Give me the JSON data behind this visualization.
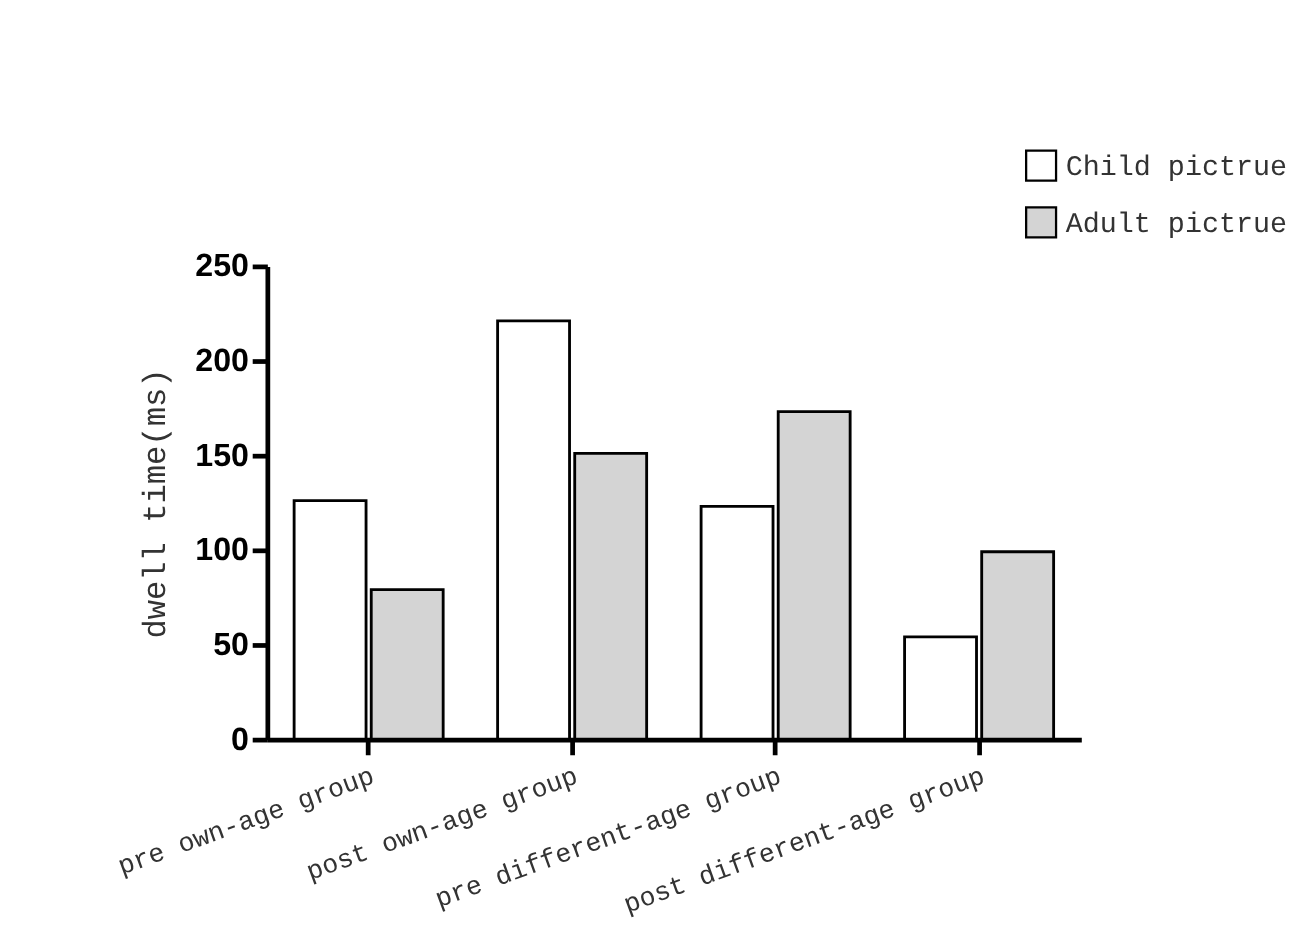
{
  "chart_data": {
    "type": "bar",
    "ylabel": "dwell time(ms)",
    "categories": [
      "pre own-age group",
      "post own-age group",
      "pre different-age group",
      "post different-age group"
    ],
    "series": [
      {
        "name": "Child pictrue",
        "color": "#ffffff",
        "values": [
          126,
          221,
          123,
          54
        ]
      },
      {
        "name": "Adult pictrue",
        "color": "#d4d4d4",
        "values": [
          79,
          151,
          173,
          99
        ]
      }
    ],
    "ylim": [
      0,
      250
    ],
    "yticks": [
      0,
      50,
      100,
      150,
      200,
      250
    ],
    "grid": false,
    "legend": "top right"
  }
}
